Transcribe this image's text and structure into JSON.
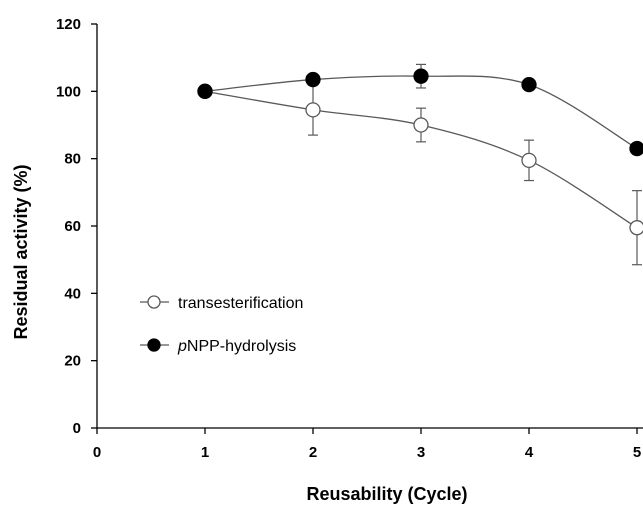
{
  "chart_data": {
    "type": "line",
    "title": "",
    "xlabel": "Reusability (Cycle)",
    "ylabel": "Residual activity (%)",
    "xlim": [
      0,
      5
    ],
    "ylim": [
      0,
      120
    ],
    "xticks": [
      "0",
      "1",
      "2",
      "3",
      "4",
      "5"
    ],
    "yticks": [
      "0",
      "20",
      "40",
      "60",
      "80",
      "100",
      "120"
    ],
    "grid": false,
    "legend_position": "left",
    "series": [
      {
        "name": "transesterification",
        "marker": "open-circle",
        "x": [
          1,
          2,
          3,
          4,
          5
        ],
        "y": [
          100,
          94.5,
          90,
          79.5,
          59.5
        ],
        "error": [
          0,
          7.5,
          5,
          6,
          11
        ]
      },
      {
        "name": "pNPP-hydrolysis",
        "name_italic_prefix": "p",
        "name_rest": "NPP-hydrolysis",
        "marker": "filled-circle",
        "x": [
          1,
          2,
          3,
          4,
          5
        ],
        "y": [
          100,
          103.5,
          104.5,
          102,
          83
        ],
        "error": [
          0,
          0,
          3.5,
          0,
          0
        ]
      }
    ],
    "colors": {
      "line": "#595959",
      "axis": "#000000",
      "filled_marker": "#000000",
      "open_marker_fill": "#ffffff"
    }
  }
}
